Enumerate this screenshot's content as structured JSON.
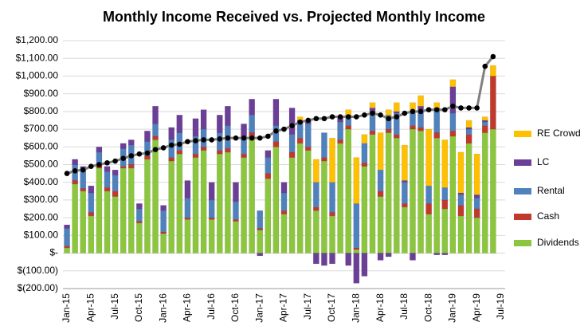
{
  "chart_data": {
    "type": "stacked-bar-line",
    "title": "Monthly Income Received vs. Projected Monthly Income",
    "categories": [
      "Jan-15",
      null,
      null,
      "Apr-15",
      null,
      null,
      "Jul-15",
      null,
      null,
      "Oct-15",
      null,
      null,
      "Jan-16",
      null,
      null,
      "Apr-16",
      null,
      null,
      "Jul-16",
      null,
      null,
      "Oct-16",
      null,
      null,
      "Jan-17",
      null,
      null,
      "Apr-17",
      null,
      null,
      "Jul-17",
      null,
      null,
      "Oct-17",
      null,
      null,
      "Jan-18",
      null,
      null,
      "Apr-18",
      null,
      null,
      "Jul-18",
      null,
      null,
      "Oct-18",
      null,
      null,
      "Jan-19",
      null,
      null,
      "Apr-19",
      null,
      null,
      "Jul-19"
    ],
    "series": [
      {
        "name": "Dividends",
        "color": "#8cc63f",
        "values": [
          30,
          390,
          350,
          210,
          480,
          350,
          320,
          480,
          480,
          170,
          530,
          640,
          110,
          520,
          560,
          190,
          540,
          580,
          190,
          560,
          570,
          180,
          540,
          650,
          130,
          420,
          600,
          220,
          540,
          620,
          580,
          240,
          520,
          210,
          620,
          700,
          20,
          490,
          670,
          320,
          680,
          650,
          260,
          700,
          690,
          220,
          650,
          250,
          660,
          210,
          620,
          200,
          680,
          700,
          null
        ]
      },
      {
        "name": "Cash",
        "color": "#c0392b",
        "values": [
          10,
          20,
          15,
          20,
          20,
          20,
          30,
          10,
          20,
          10,
          20,
          20,
          10,
          20,
          20,
          10,
          20,
          20,
          10,
          20,
          20,
          10,
          20,
          30,
          10,
          30,
          30,
          20,
          30,
          30,
          20,
          20,
          20,
          20,
          20,
          20,
          10,
          20,
          20,
          30,
          20,
          20,
          20,
          20,
          20,
          60,
          30,
          50,
          30,
          60,
          50,
          50,
          40,
          300,
          null
        ]
      },
      {
        "name": "Rental",
        "color": "#4f81bd",
        "values": [
          100,
          90,
          100,
          110,
          70,
          90,
          90,
          100,
          110,
          70,
          80,
          70,
          120,
          100,
          100,
          110,
          100,
          100,
          100,
          100,
          130,
          100,
          80,
          100,
          100,
          90,
          90,
          100,
          100,
          90,
          130,
          140,
          140,
          170,
          100,
          60,
          250,
          110,
          90,
          120,
          80,
          120,
          120,
          80,
          100,
          100,
          140,
          70,
          100,
          60,
          30,
          60,
          20,
          0,
          null
        ]
      },
      {
        "name": "LC",
        "color": "#6b3f98",
        "values": [
          20,
          30,
          25,
          40,
          30,
          30,
          30,
          30,
          30,
          30,
          60,
          100,
          30,
          70,
          100,
          100,
          100,
          110,
          100,
          100,
          110,
          110,
          90,
          90,
          -15,
          40,
          150,
          60,
          150,
          10,
          20,
          -60,
          -70,
          -60,
          30,
          -70,
          -170,
          -130,
          40,
          -40,
          -20,
          10,
          10,
          -40,
          20,
          0,
          -10,
          -10,
          150,
          10,
          10,
          20,
          10,
          0,
          null
        ]
      },
      {
        "name": "RE Crowd",
        "color": "#ffc000",
        "values": [
          0,
          0,
          0,
          0,
          0,
          0,
          0,
          0,
          0,
          0,
          0,
          0,
          0,
          0,
          0,
          0,
          0,
          0,
          0,
          0,
          0,
          0,
          0,
          0,
          0,
          0,
          0,
          0,
          0,
          20,
          0,
          130,
          0,
          250,
          0,
          30,
          260,
          50,
          30,
          210,
          30,
          50,
          200,
          50,
          60,
          320,
          30,
          270,
          40,
          230,
          40,
          230,
          20,
          60,
          null
        ]
      }
    ],
    "line": {
      "color": "#808080",
      "marker_color": "#000000",
      "values": [
        450,
        465,
        470,
        490,
        500,
        510,
        520,
        535,
        550,
        560,
        565,
        585,
        595,
        610,
        615,
        630,
        635,
        640,
        640,
        645,
        650,
        650,
        650,
        650,
        650,
        660,
        690,
        700,
        720,
        740,
        750,
        760,
        760,
        770,
        770,
        770,
        770,
        780,
        790,
        780,
        760,
        770,
        790,
        800,
        800,
        810,
        810,
        810,
        830,
        820,
        820,
        820,
        1055,
        1110,
        null
      ]
    },
    "ylim": [
      -200,
      1200
    ],
    "yticks": [
      {
        "value": -200,
        "label": "$(200.00)"
      },
      {
        "value": -100,
        "label": "$(100.00)"
      },
      {
        "value": 0,
        "label": "$-"
      },
      {
        "value": 100,
        "label": "$100.00"
      },
      {
        "value": 200,
        "label": "$200.00"
      },
      {
        "value": 300,
        "label": "$300.00"
      },
      {
        "value": 400,
        "label": "$400.00"
      },
      {
        "value": 500,
        "label": "$500.00"
      },
      {
        "value": 600,
        "label": "$600.00"
      },
      {
        "value": 700,
        "label": "$700.00"
      },
      {
        "value": 800,
        "label": "$800.00"
      },
      {
        "value": 900,
        "label": "$900.00"
      },
      {
        "value": 1000,
        "label": "$1,000.00"
      },
      {
        "value": 1100,
        "label": "$1,100.00"
      },
      {
        "value": 1200,
        "label": "$1,200.00"
      }
    ],
    "grid": true,
    "legend": "right"
  }
}
